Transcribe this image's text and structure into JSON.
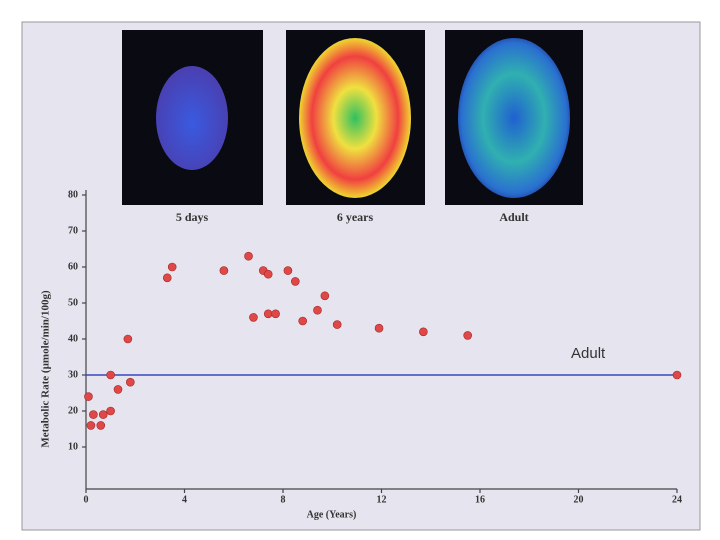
{
  "chart_data": {
    "type": "scatter",
    "panel_captions": [
      "5 days",
      "6 years",
      "Adult"
    ],
    "xlabel": "Age (Years)",
    "ylabel": "Metabolic Rate (µmole/min/100g)",
    "xlim": [
      0,
      24
    ],
    "xticks": [
      0,
      4,
      8,
      12,
      16,
      20,
      24
    ],
    "ylim": [
      0,
      80
    ],
    "yticks": [
      10,
      20,
      30,
      40,
      50,
      60,
      70,
      80
    ],
    "color": "#e04848",
    "x": [
      0.1,
      0.2,
      0.3,
      0.6,
      0.7,
      1.0,
      1.0,
      1.3,
      1.7,
      1.8,
      3.3,
      3.5,
      5.6,
      6.6,
      6.8,
      7.2,
      7.4,
      7.4,
      7.7,
      8.2,
      8.5,
      8.8,
      9.4,
      9.7,
      10.2,
      11.9,
      13.7,
      15.5,
      24
    ],
    "y": [
      24,
      16,
      19,
      16,
      19,
      30,
      20,
      26,
      40,
      28,
      57,
      60,
      59,
      63,
      46,
      59,
      58,
      47,
      47,
      59,
      56,
      45,
      48,
      52,
      44,
      43,
      42,
      41,
      30
    ],
    "reference_line": {
      "value": 30,
      "label": "Adult",
      "color": "#3848c0"
    }
  }
}
